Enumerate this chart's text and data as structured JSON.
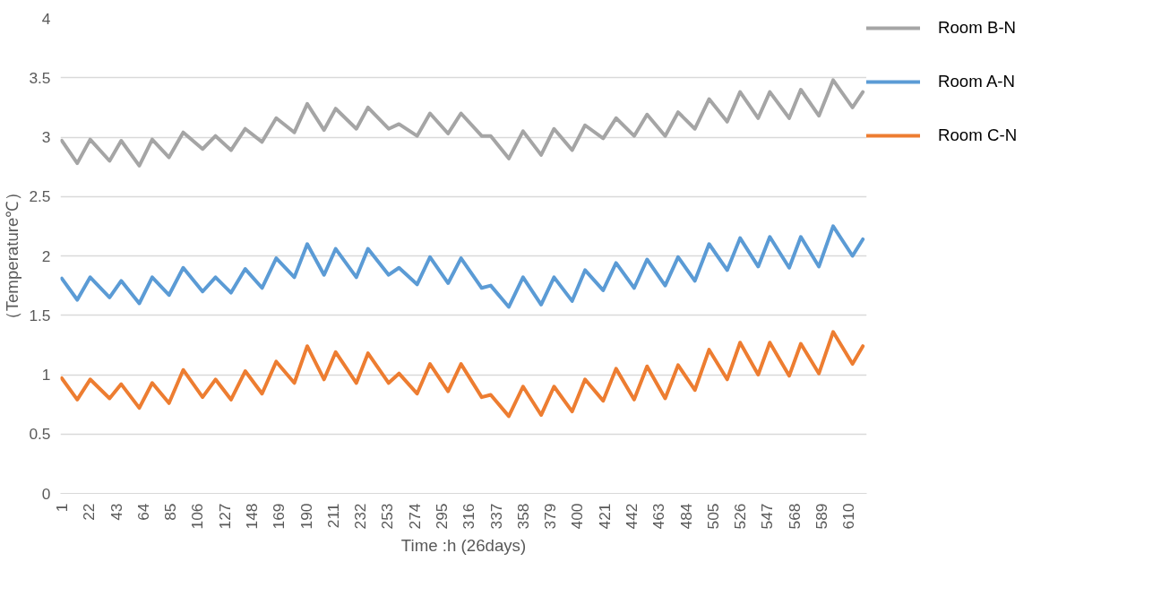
{
  "chart_data": {
    "type": "line",
    "xlabel": "Time :h (26days)",
    "ylabel": "（Temperature℃）",
    "x": [
      1,
      13,
      23,
      38,
      47,
      61,
      71,
      84,
      95,
      110,
      120,
      132,
      143,
      156,
      167,
      181,
      191,
      204,
      213,
      229,
      238,
      254,
      262,
      276,
      286,
      300,
      310,
      326,
      333,
      347,
      358,
      372,
      382,
      396,
      406,
      420,
      430,
      444,
      454,
      468,
      478,
      491,
      502,
      516,
      526,
      540,
      549,
      564,
      573,
      587,
      598,
      613,
      621
    ],
    "series": [
      {
        "name": "Room B-N",
        "color": "#a5a5a5",
        "values": [
          2.97,
          2.78,
          2.98,
          2.8,
          2.97,
          2.76,
          2.98,
          2.83,
          3.04,
          2.9,
          3.01,
          2.89,
          3.07,
          2.96,
          3.16,
          3.04,
          3.28,
          3.06,
          3.24,
          3.07,
          3.25,
          3.07,
          3.11,
          3.01,
          3.2,
          3.03,
          3.2,
          3.01,
          3.01,
          2.82,
          3.05,
          2.85,
          3.07,
          2.89,
          3.1,
          2.99,
          3.16,
          3.01,
          3.19,
          3.01,
          3.21,
          3.07,
          3.32,
          3.13,
          3.38,
          3.16,
          3.38,
          3.16,
          3.4,
          3.18,
          3.48,
          3.25,
          3.38
        ]
      },
      {
        "name": "Room A-N",
        "color": "#5b9bd5",
        "values": [
          1.81,
          1.63,
          1.82,
          1.65,
          1.79,
          1.6,
          1.82,
          1.67,
          1.9,
          1.7,
          1.82,
          1.69,
          1.89,
          1.73,
          1.98,
          1.82,
          2.1,
          1.84,
          2.06,
          1.82,
          2.06,
          1.84,
          1.9,
          1.76,
          1.99,
          1.77,
          1.98,
          1.73,
          1.75,
          1.57,
          1.82,
          1.59,
          1.82,
          1.62,
          1.88,
          1.71,
          1.94,
          1.73,
          1.97,
          1.75,
          1.99,
          1.79,
          2.1,
          1.88,
          2.15,
          1.91,
          2.16,
          1.9,
          2.16,
          1.91,
          2.25,
          2.0,
          2.14
        ]
      },
      {
        "name": "Room C-N",
        "color": "#ed7d31",
        "values": [
          0.97,
          0.79,
          0.96,
          0.8,
          0.92,
          0.72,
          0.93,
          0.76,
          1.04,
          0.81,
          0.96,
          0.79,
          1.03,
          0.84,
          1.11,
          0.93,
          1.24,
          0.96,
          1.19,
          0.93,
          1.18,
          0.93,
          1.01,
          0.84,
          1.09,
          0.86,
          1.09,
          0.81,
          0.83,
          0.65,
          0.9,
          0.66,
          0.9,
          0.69,
          0.96,
          0.78,
          1.05,
          0.79,
          1.07,
          0.8,
          1.08,
          0.87,
          1.21,
          0.96,
          1.27,
          1.0,
          1.27,
          0.99,
          1.26,
          1.01,
          1.36,
          1.09,
          1.24
        ]
      }
    ],
    "xlim": [
      0,
      624
    ],
    "xticks": [
      1,
      22,
      43,
      64,
      85,
      106,
      127,
      148,
      169,
      190,
      211,
      232,
      253,
      274,
      295,
      316,
      337,
      358,
      379,
      400,
      421,
      442,
      463,
      484,
      505,
      526,
      547,
      568,
      589,
      610
    ],
    "ylim": [
      0,
      4
    ],
    "yticks": [
      0,
      0.5,
      1,
      1.5,
      2,
      2.5,
      3,
      3.5,
      4
    ],
    "grid": "y",
    "legend": "top right"
  }
}
